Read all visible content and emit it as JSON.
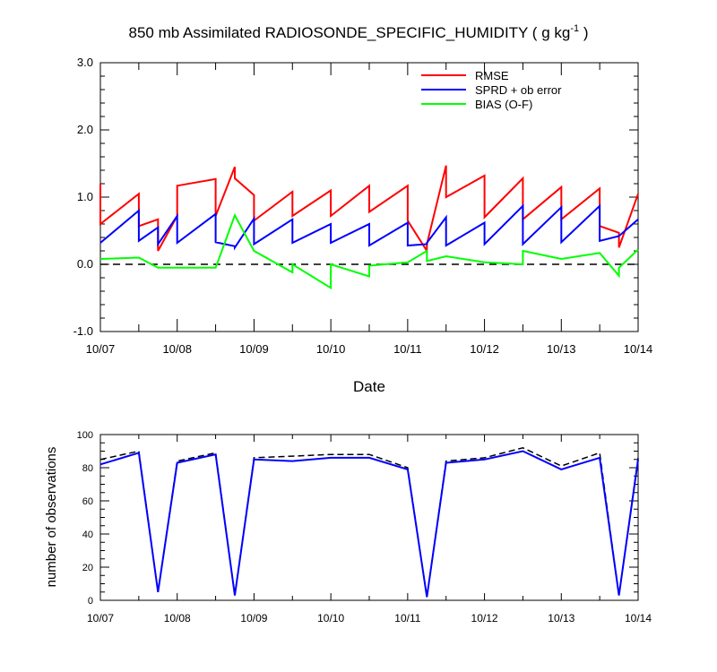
{
  "chart_data": [
    {
      "type": "line",
      "title_main": "850 mb Assimilated RADIOSONDE_SPECIFIC_HUMIDITY ( g kg",
      "title_sup": "-1",
      "title_end": " )",
      "xlabel": "Date",
      "ylabel": "",
      "xlim": [
        0,
        7
      ],
      "ylim": [
        -1.0,
        3.0
      ],
      "yticks": [
        "-1.0",
        "0.0",
        "1.0",
        "2.0",
        "3.0"
      ],
      "yticks_values": [
        -1,
        0,
        1,
        2,
        3
      ],
      "xticks": [
        "10/07",
        "10/08",
        "10/09",
        "10/10",
        "10/11",
        "10/12",
        "10/13",
        "10/14"
      ],
      "grid": false,
      "legend_position": "top-right",
      "zero_line": "dashed",
      "series": [
        {
          "name": "RMSE",
          "color": "#ff0000",
          "x": [
            0,
            0,
            0.5,
            0.5,
            0.75,
            0.75,
            1,
            1,
            1.5,
            1.5,
            1.75,
            1.75,
            2,
            2,
            2.5,
            2.5,
            3,
            3,
            3.5,
            3.5,
            4,
            4,
            4.25,
            4.25,
            4.5,
            4.5,
            5,
            5,
            5.5,
            5.5,
            6,
            6,
            6.5,
            6.5,
            6.75,
            6.75,
            7,
            7
          ],
          "y": [
            1.2,
            0.6,
            1.05,
            0.57,
            0.67,
            0.2,
            0.72,
            1.17,
            1.27,
            0.72,
            1.45,
            1.28,
            1.03,
            0.65,
            1.08,
            0.72,
            1.1,
            0.72,
            1.17,
            0.78,
            1.17,
            0.65,
            0.2,
            0.3,
            1.47,
            1.0,
            1.32,
            0.7,
            1.28,
            0.67,
            1.15,
            0.67,
            1.13,
            0.57,
            0.47,
            0.25,
            1.05,
            1.05
          ]
        },
        {
          "name": "SPRD + ob error",
          "color": "#0000ff",
          "x": [
            0,
            0.5,
            0.5,
            0.75,
            0.75,
            1,
            1,
            1.5,
            1.5,
            1.75,
            1.75,
            2,
            2,
            2.5,
            2.5,
            3,
            3,
            3.5,
            3.5,
            4,
            4,
            4.25,
            4.25,
            4.5,
            4.5,
            5,
            5,
            5.5,
            5.5,
            6,
            6,
            6.5,
            6.5,
            6.75,
            6.75,
            7
          ],
          "y": [
            0.32,
            0.8,
            0.35,
            0.55,
            0.3,
            0.72,
            0.32,
            0.75,
            0.33,
            0.27,
            0.25,
            0.68,
            0.3,
            0.67,
            0.32,
            0.6,
            0.32,
            0.6,
            0.28,
            0.62,
            0.28,
            0.3,
            0.32,
            0.7,
            0.28,
            0.62,
            0.3,
            0.87,
            0.3,
            0.85,
            0.33,
            0.87,
            0.35,
            0.42,
            0.42,
            0.67
          ]
        },
        {
          "name": "BIAS (O-F)",
          "color": "#00ff00",
          "x": [
            0,
            0.5,
            0.75,
            1,
            1.5,
            1.75,
            2,
            2.5,
            2.5,
            3,
            3,
            3.5,
            3.5,
            4,
            4.25,
            4.25,
            4.5,
            5,
            5.5,
            5.5,
            6,
            6.5,
            6.75,
            6.75,
            7
          ],
          "y": [
            0.08,
            0.1,
            -0.05,
            -0.05,
            -0.05,
            0.73,
            0.2,
            -0.12,
            0.0,
            -0.35,
            0.0,
            -0.18,
            -0.02,
            0.03,
            0.2,
            0.05,
            0.12,
            0.03,
            0.0,
            0.2,
            0.08,
            0.17,
            -0.17,
            -0.05,
            0.22
          ]
        }
      ]
    },
    {
      "type": "line",
      "title": "",
      "xlabel": "",
      "ylabel": "number of observations",
      "xlim": [
        0,
        7
      ],
      "ylim": [
        0,
        100
      ],
      "yticks": [
        "0",
        "20",
        "40",
        "60",
        "80",
        "100"
      ],
      "yticks_values": [
        0,
        20,
        40,
        60,
        80,
        100
      ],
      "xticks": [
        "10/07",
        "10/08",
        "10/09",
        "10/10",
        "10/11",
        "10/12",
        "10/13",
        "10/14"
      ],
      "grid": false,
      "series": [
        {
          "color": "#000000",
          "style": "dashed",
          "x": [
            0,
            0.5,
            0.75,
            1,
            1.5,
            1.75,
            2,
            2.5,
            3,
            3.5,
            4,
            4.25,
            4.5,
            5,
            5.5,
            6,
            6.5,
            6.75,
            7
          ],
          "y": [
            85,
            90,
            5,
            84,
            89,
            3,
            86,
            87,
            88,
            88,
            80,
            2,
            84,
            86,
            92,
            81,
            89,
            3,
            86
          ]
        },
        {
          "color": "#0000ff",
          "style": "solid",
          "x": [
            0,
            0.5,
            0.75,
            1,
            1.5,
            1.75,
            2,
            2.5,
            3,
            3.5,
            4,
            4.25,
            4.5,
            5,
            5.5,
            6,
            6.5,
            6.75,
            7
          ],
          "y": [
            82,
            89,
            5,
            83,
            88,
            3,
            85,
            84,
            86,
            86,
            79,
            2,
            83,
            85,
            90,
            79,
            86,
            3,
            85
          ]
        }
      ]
    }
  ]
}
